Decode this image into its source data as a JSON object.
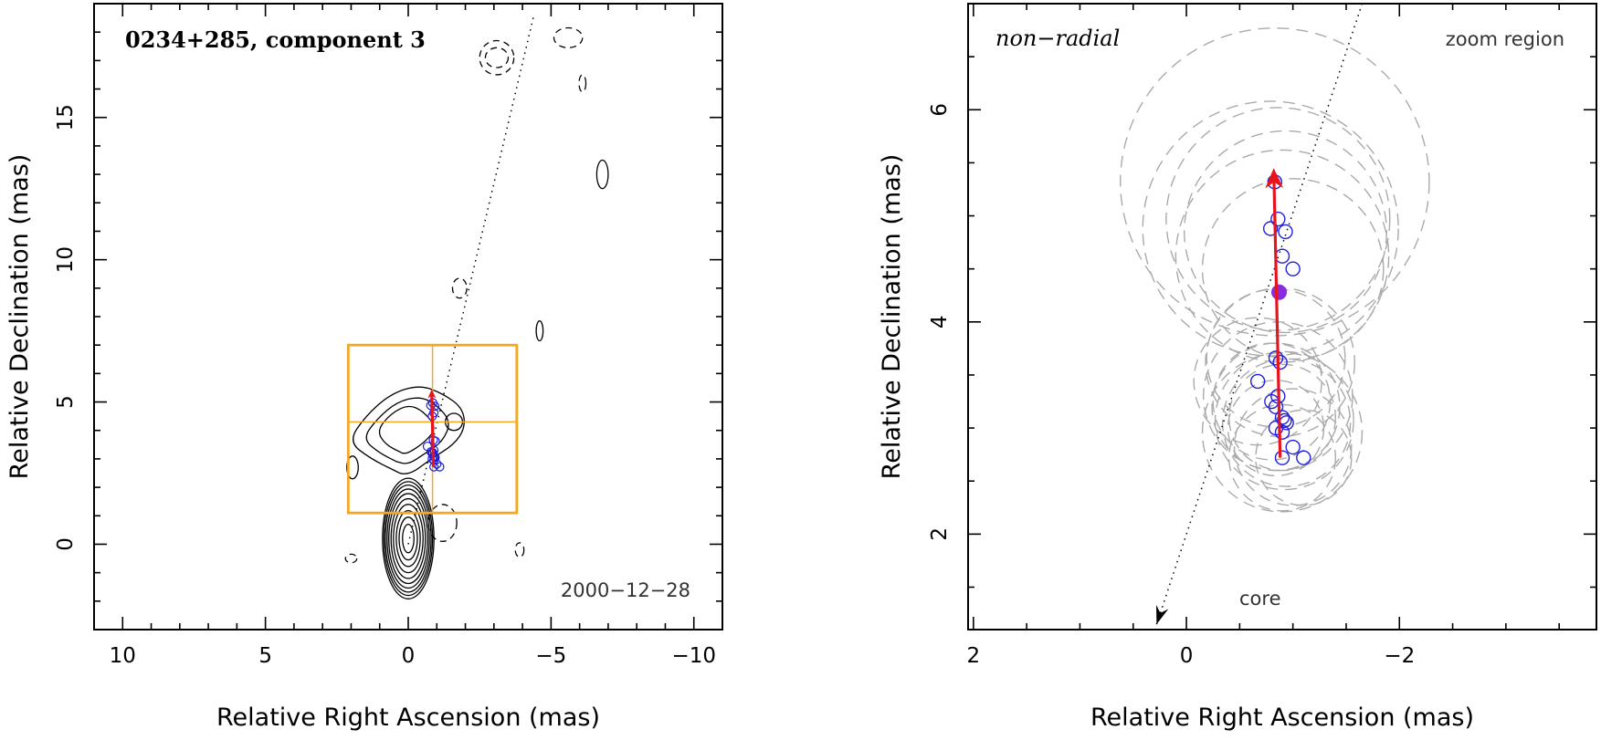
{
  "chart_data": [
    {
      "type": "scatter",
      "panel": "left",
      "title": "0234+285, component 3",
      "xlabel": "Relative Right Ascension (mas)",
      "ylabel": "Relative Declination (mas)",
      "xlim": [
        11,
        -11
      ],
      "ylim": [
        -3,
        19
      ],
      "xticks": [
        10,
        5,
        0,
        -5,
        -10
      ],
      "xtick_labels": [
        "10",
        "5",
        "0",
        "−5",
        "−10"
      ],
      "yticks": [
        0,
        5,
        10,
        15
      ],
      "ytick_labels": [
        "0",
        "5",
        "10",
        "15"
      ],
      "date_label": "2000−12−28",
      "colors": {
        "zoom_box": "#f5a623",
        "motion_arrow": "#e8141c",
        "points": "#1f1fdd",
        "mean_point": "#8a2be2"
      },
      "trajectory_line": {
        "x": [
          0,
          -4.4
        ],
        "y": [
          0,
          18.6
        ],
        "style": "dotted"
      },
      "zoom_box": {
        "x": [
          2.1,
          -3.8
        ],
        "y": [
          1.1,
          7.0
        ],
        "crosshair": [
          -0.85,
          4.3
        ]
      },
      "motion_arrow": {
        "x": [
          -0.88,
          -0.82
        ],
        "y": [
          2.72,
          5.45
        ]
      },
      "points": {
        "x": [
          -0.79,
          -0.86,
          -0.93,
          -0.9,
          -0.84,
          -0.88,
          -0.95,
          -0.9,
          -0.67,
          -0.8,
          -0.84,
          -0.86,
          -0.9,
          -0.92,
          -0.84,
          -0.9,
          -0.94,
          -0.9,
          -1.0,
          -1.1
        ],
        "y": [
          4.88,
          4.97,
          4.85,
          4.62,
          4.5,
          3.66,
          3.62,
          3.3,
          3.44,
          3.25,
          3.2,
          3.22,
          3.1,
          3.07,
          3.0,
          2.96,
          3.05,
          2.72,
          2.82,
          2.72
        ]
      },
      "contours": [
        {
          "cx": 0,
          "cy": 0.2,
          "rx": [
            0.2,
            0.32,
            0.42,
            0.52,
            0.6,
            0.68,
            0.74,
            0.8,
            0.85,
            0.9
          ],
          "ry": [
            0.5,
            0.75,
            0.98,
            1.2,
            1.4,
            1.58,
            1.74,
            1.88,
            2.0,
            2.12
          ],
          "style": "solid"
        },
        {
          "cx": -1.2,
          "cy": 0.75,
          "rx": [
            0.5
          ],
          "ry": [
            0.65
          ],
          "style": "dashed"
        },
        {
          "cx": 2.0,
          "cy": -0.5,
          "rx": [
            0.2
          ],
          "ry": [
            0.15
          ],
          "style": "dashed"
        },
        {
          "cx": -3.9,
          "cy": -0.2,
          "rx": [
            0.15
          ],
          "ry": [
            0.25
          ],
          "style": "dashed"
        },
        {
          "cx": 1.95,
          "cy": 2.7,
          "rx": [
            0.2
          ],
          "ry": [
            0.4
          ],
          "style": "solid"
        },
        {
          "cx": -4.6,
          "cy": 7.5,
          "rx": [
            0.12
          ],
          "ry": [
            0.35
          ],
          "style": "solid"
        },
        {
          "cx": -6.8,
          "cy": 13.0,
          "rx": [
            0.2
          ],
          "ry": [
            0.5
          ],
          "style": "solid"
        },
        {
          "cx": -1.8,
          "cy": 9.0,
          "rx": [
            0.25
          ],
          "ry": [
            0.35
          ],
          "style": "dashed"
        },
        {
          "cx": -3.1,
          "cy": 17.1,
          "rx": [
            0.6,
            0.4
          ],
          "ry": [
            0.6,
            0.35
          ],
          "style": "dashed"
        },
        {
          "cx": -5.6,
          "cy": 17.8,
          "rx": [
            0.5
          ],
          "ry": [
            0.35
          ],
          "style": "dashed"
        },
        {
          "cx": -6.1,
          "cy": 16.2,
          "rx": [
            0.12
          ],
          "ry": [
            0.3
          ],
          "style": "dashed"
        },
        {
          "cx": -1.6,
          "cy": 4.3,
          "rx": [
            0.3
          ],
          "ry": [
            0.3
          ],
          "style": "solid"
        }
      ],
      "blob_contours": [
        {
          "style": "solid",
          "x": [
            0.5,
            1.3,
            2.1,
            1.5,
            0.6,
            -0.4,
            -1.2,
            -1.9,
            -2.0,
            -1.6,
            -0.8,
            0,
            0.6
          ],
          "y": [
            2.6,
            3.0,
            3.6,
            4.5,
            5.3,
            5.6,
            5.3,
            4.8,
            4.1,
            3.5,
            3.0,
            2.4,
            2.6
          ]
        },
        {
          "style": "solid",
          "x": [
            0.4,
            1.0,
            1.6,
            1.1,
            0.4,
            -0.4,
            -1.0,
            -1.5,
            -1.2,
            -0.6,
            0,
            0.4
          ],
          "y": [
            2.9,
            3.2,
            3.7,
            4.4,
            5.0,
            5.2,
            4.9,
            4.3,
            3.6,
            3.2,
            2.8,
            2.9
          ]
        },
        {
          "style": "solid",
          "x": [
            0.2,
            0.8,
            1.1,
            0.6,
            0,
            -0.5,
            -1.0,
            -0.6,
            0,
            0.2
          ],
          "y": [
            3.2,
            3.5,
            4.0,
            4.6,
            4.9,
            4.7,
            4.1,
            3.6,
            3.2,
            3.2
          ]
        }
      ]
    },
    {
      "type": "scatter",
      "panel": "right",
      "title": "non−radial",
      "corner_label": "zoom region",
      "xlabel": "Relative Right Ascension (mas)",
      "ylabel": "Relative Declination (mas)",
      "xlim": [
        2.05,
        -3.85
      ],
      "ylim": [
        1.1,
        7.0
      ],
      "xticks": [
        2,
        0,
        -2
      ],
      "xtick_labels": [
        "2",
        "0",
        "−2"
      ],
      "yticks": [
        2,
        4,
        6
      ],
      "ytick_labels": [
        "2",
        "4",
        "6"
      ],
      "core_label": "core",
      "trajectory_line": {
        "x": [
          0.28,
          -1.65
        ],
        "y": [
          1.15,
          7.0
        ],
        "style": "dotted"
      },
      "core_arrow_tip": [
        0.28,
        1.15
      ],
      "motion_arrow": {
        "x": [
          -0.88,
          -0.82
        ],
        "y": [
          2.72,
          5.45
        ]
      },
      "mean_point": {
        "x": -0.87,
        "y": 4.28
      },
      "points": {
        "x": [
          -0.83,
          -0.79,
          -0.86,
          -0.93,
          -0.9,
          -1.0,
          -0.84,
          -0.88,
          -0.67,
          -0.8,
          -0.84,
          -0.86,
          -0.9,
          -0.92,
          -0.84,
          -0.9,
          -0.94,
          -0.9,
          -1.0,
          -1.1
        ],
        "y": [
          5.32,
          4.88,
          4.97,
          4.85,
          4.62,
          4.5,
          3.66,
          3.62,
          3.44,
          3.25,
          3.2,
          3.3,
          3.1,
          3.07,
          3.0,
          2.96,
          3.05,
          2.72,
          2.82,
          2.72
        ]
      },
      "uncertainty_circles": {
        "cx": [
          -0.83,
          -0.79,
          -0.86,
          -0.93,
          -0.9,
          -1.0,
          -0.84,
          -0.88,
          -0.67,
          -0.8,
          -0.84,
          -0.86,
          -0.9,
          -0.92,
          -0.84,
          -0.9,
          -0.94,
          -0.9,
          -1.0,
          -1.1
        ],
        "cy": [
          5.32,
          4.88,
          4.97,
          4.85,
          4.62,
          4.5,
          3.66,
          3.62,
          3.44,
          3.25,
          3.2,
          3.3,
          3.1,
          3.07,
          3.0,
          2.96,
          3.05,
          2.72,
          2.82,
          2.72
        ],
        "r": [
          1.45,
          1.2,
          1.05,
          0.95,
          1.0,
          0.85,
          0.65,
          0.7,
          0.6,
          0.55,
          0.6,
          0.7,
          0.5,
          0.65,
          0.45,
          0.75,
          0.6,
          0.5,
          0.55,
          0.45
        ]
      }
    }
  ]
}
